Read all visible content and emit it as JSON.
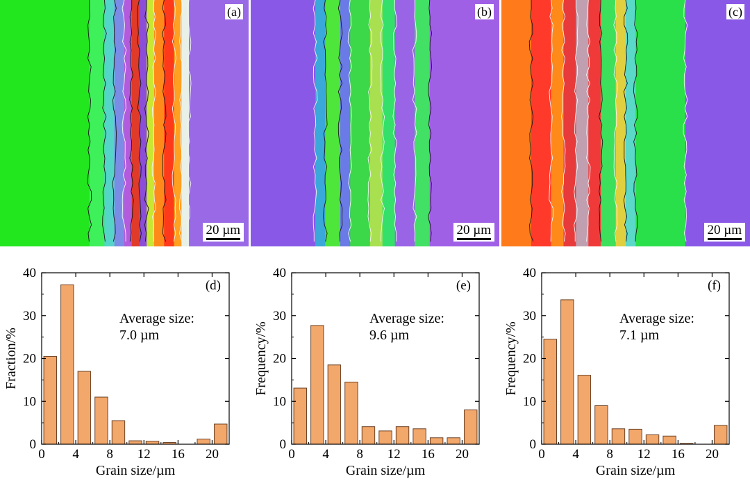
{
  "maps": [
    {
      "label": "(a)",
      "scale": "20 µm",
      "bands": [
        [
          "#22e61e",
          0.36
        ],
        [
          "#3ef05a",
          0.06
        ],
        [
          "#55d4c8",
          0.04
        ],
        [
          "#7b8ce6",
          0.04
        ],
        [
          "#b45adc",
          0.03
        ],
        [
          "#e03a2a",
          0.03
        ],
        [
          "#8c4ed8",
          0.03
        ],
        [
          "#c8e632",
          0.03
        ],
        [
          "#ff8a1a",
          0.04
        ],
        [
          "#ff3a1a",
          0.04
        ],
        [
          "#ffa020",
          0.03
        ],
        [
          "#e8f0e8",
          0.03
        ],
        [
          "#9a6ae6",
          0.27
        ]
      ]
    },
    {
      "label": "(b)",
      "scale": "20 µm",
      "bands": [
        [
          "#8a58e6",
          0.26
        ],
        [
          "#3aa8d8",
          0.04
        ],
        [
          "#4ee63a",
          0.06
        ],
        [
          "#6a7ae6",
          0.04
        ],
        [
          "#3cd84a",
          0.08
        ],
        [
          "#a8e050",
          0.05
        ],
        [
          "#34e06a",
          0.05
        ],
        [
          "#9a64e6",
          0.08
        ],
        [
          "#42e064",
          0.06
        ],
        [
          "#a060e6",
          0.28
        ]
      ]
    },
    {
      "label": "(c)",
      "scale": "20 µm",
      "bands": [
        [
          "#ff7a1a",
          0.12
        ],
        [
          "#ff3a2a",
          0.08
        ],
        [
          "#ff8a1a",
          0.05
        ],
        [
          "#e83a3a",
          0.05
        ],
        [
          "#c0a0b0",
          0.05
        ],
        [
          "#f03a3a",
          0.05
        ],
        [
          "#3ce05a",
          0.06
        ],
        [
          "#e0d040",
          0.04
        ],
        [
          "#5ad8c8",
          0.04
        ],
        [
          "#2ae04a",
          0.2
        ],
        [
          "#8a58e6",
          0.26
        ]
      ]
    }
  ],
  "chart_data": [
    {
      "type": "bar",
      "panel": "(d)",
      "x": [
        1,
        3,
        5,
        7,
        9,
        11,
        13,
        15,
        17,
        19,
        21
      ],
      "values": [
        20.5,
        37.2,
        17.0,
        11.0,
        5.5,
        0.8,
        0.7,
        0.4,
        0.0,
        1.2,
        4.7
      ],
      "xlabel": "Grain size/µm",
      "ylabel": "Fraction/%",
      "xticks": [
        0,
        4,
        8,
        12,
        16,
        20
      ],
      "yticks": [
        0,
        10,
        20,
        30,
        40
      ],
      "xlim": [
        0,
        22
      ],
      "ylim": [
        0,
        40
      ],
      "annotation": [
        "Average size:",
        "7.0 µm"
      ]
    },
    {
      "type": "bar",
      "panel": "(e)",
      "x": [
        1,
        3,
        5,
        7,
        9,
        11,
        13,
        15,
        17,
        19,
        21
      ],
      "values": [
        13.1,
        27.7,
        18.5,
        14.5,
        4.1,
        3.1,
        4.1,
        3.6,
        1.5,
        1.5,
        8.0
      ],
      "xlabel": "Grain size/µm",
      "ylabel": "Frequency/%",
      "xticks": [
        0,
        4,
        8,
        12,
        16,
        20
      ],
      "yticks": [
        0,
        10,
        20,
        30,
        40
      ],
      "xlim": [
        0,
        22
      ],
      "ylim": [
        0,
        40
      ],
      "annotation": [
        "Average size:",
        "9.6 µm"
      ]
    },
    {
      "type": "bar",
      "panel": "(f)",
      "x": [
        1,
        3,
        5,
        7,
        9,
        11,
        13,
        15,
        17,
        19,
        21
      ],
      "values": [
        24.5,
        33.7,
        16.1,
        9.0,
        3.6,
        3.5,
        2.2,
        1.9,
        0.2,
        0.0,
        4.4
      ],
      "xlabel": "Grain size/µm",
      "ylabel": "Frequency/%",
      "xticks": [
        0,
        4,
        8,
        12,
        16,
        20
      ],
      "yticks": [
        0,
        10,
        20,
        30,
        40
      ],
      "xlim": [
        0,
        22
      ],
      "ylim": [
        0,
        40
      ],
      "annotation": [
        "Average size:",
        "7.1 µm"
      ]
    }
  ],
  "colors": {
    "bar_fill": "#f2a76b",
    "bar_stroke": "#6b4226"
  }
}
